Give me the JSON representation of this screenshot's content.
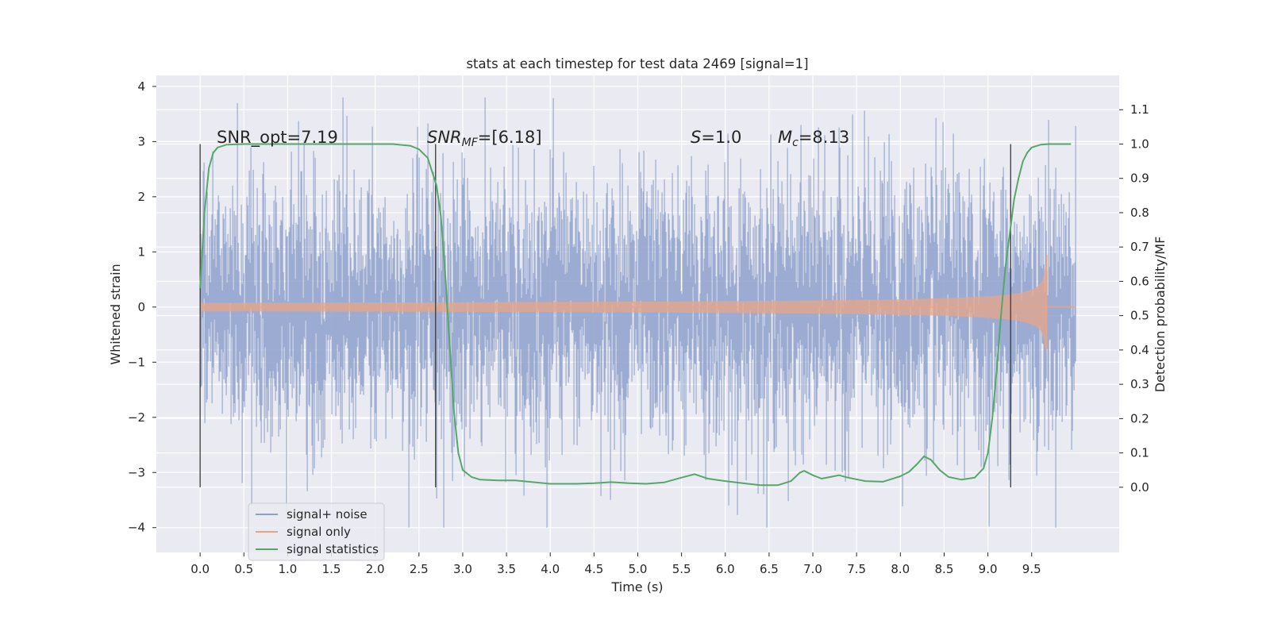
{
  "chart_data": {
    "type": "line",
    "title": "stats at each timestep for test data 2469 [signal=1]",
    "xlabel": "Time (s)",
    "ylabel": "Whitened strain",
    "ylabel_right": "Detection probability/MF",
    "xlim": [
      -0.5,
      10.5
    ],
    "ylim": [
      -4.45,
      4.2
    ],
    "ylim_right": [
      -0.19,
      1.2
    ],
    "x_ticks": [
      "0.0",
      "0.5",
      "1.0",
      "1.5",
      "2.0",
      "2.5",
      "3.0",
      "3.5",
      "4.0",
      "4.5",
      "5.0",
      "5.5",
      "6.0",
      "6.5",
      "7.0",
      "7.5",
      "8.0",
      "8.5",
      "9.0",
      "9.5"
    ],
    "y_ticks": [
      "4",
      "3",
      "2",
      "1",
      "0",
      "−1",
      "−2",
      "−3",
      "−4"
    ],
    "y_ticks_right": [
      "1.1",
      "1.0",
      "0.9",
      "0.8",
      "0.7",
      "0.6",
      "0.5",
      "0.4",
      "0.3",
      "0.2",
      "0.1",
      "0.0"
    ],
    "annotations": {
      "snr_opt": "SNR_opt=7.19",
      "snr_mf_main": "SNR",
      "snr_mf_sub": "MF",
      "snr_mf_value": "=[6.18]",
      "s_main": "S",
      "s_value": "=1.0",
      "mc_main": "M",
      "mc_sub": "c",
      "mc_value": "=8.13"
    },
    "vlines": [
      0.0,
      2.69,
      9.26
    ],
    "vline_range_right": [
      0.0,
      1.0
    ],
    "legend_position": "lower-left",
    "series": [
      {
        "name": "signal+ noise",
        "color": "#8da0cb",
        "axis": "left",
        "kind": "noise",
        "x_range": [
          0.0,
          10.0
        ],
        "typical_amplitude": 1.2,
        "max_value": 3.8,
        "min_value": -4.0
      },
      {
        "name": "signal only",
        "color": "#e5a58a",
        "axis": "left",
        "kind": "chirp",
        "x_range": [
          0.0,
          10.0
        ],
        "merger_time": 9.67,
        "peak_amplitude": 0.95
      },
      {
        "name": "signal statistics",
        "color": "#55a868",
        "axis": "right",
        "x": [
          0.0,
          0.05,
          0.1,
          0.15,
          0.2,
          0.3,
          0.5,
          1.0,
          1.5,
          2.0,
          2.2,
          2.4,
          2.5,
          2.6,
          2.7,
          2.75,
          2.8,
          2.85,
          2.9,
          2.95,
          3.0,
          3.1,
          3.2,
          3.4,
          3.6,
          3.8,
          4.0,
          4.3,
          4.5,
          4.7,
          4.9,
          5.1,
          5.3,
          5.5,
          5.65,
          5.8,
          6.0,
          6.2,
          6.4,
          6.6,
          6.75,
          6.85,
          6.9,
          7.0,
          7.1,
          7.2,
          7.3,
          7.4,
          7.6,
          7.8,
          8.0,
          8.1,
          8.2,
          8.27,
          8.35,
          8.45,
          8.55,
          8.7,
          8.85,
          8.95,
          9.0,
          9.05,
          9.1,
          9.15,
          9.2,
          9.26,
          9.3,
          9.35,
          9.4,
          9.45,
          9.5,
          9.6,
          9.7,
          9.8,
          9.95
        ],
        "values": [
          0.58,
          0.8,
          0.93,
          0.975,
          0.99,
          0.998,
          1.0,
          1.0,
          1.0,
          1.0,
          1.0,
          0.995,
          0.985,
          0.96,
          0.88,
          0.79,
          0.62,
          0.42,
          0.22,
          0.1,
          0.05,
          0.03,
          0.022,
          0.02,
          0.02,
          0.015,
          0.01,
          0.01,
          0.012,
          0.015,
          0.012,
          0.01,
          0.014,
          0.028,
          0.038,
          0.025,
          0.018,
          0.012,
          0.006,
          0.006,
          0.018,
          0.042,
          0.048,
          0.035,
          0.025,
          0.03,
          0.035,
          0.028,
          0.018,
          0.016,
          0.032,
          0.045,
          0.07,
          0.09,
          0.08,
          0.05,
          0.03,
          0.022,
          0.028,
          0.055,
          0.1,
          0.2,
          0.34,
          0.5,
          0.64,
          0.76,
          0.84,
          0.9,
          0.95,
          0.975,
          0.99,
          0.998,
          1.0,
          1.0,
          1.0
        ]
      }
    ]
  }
}
